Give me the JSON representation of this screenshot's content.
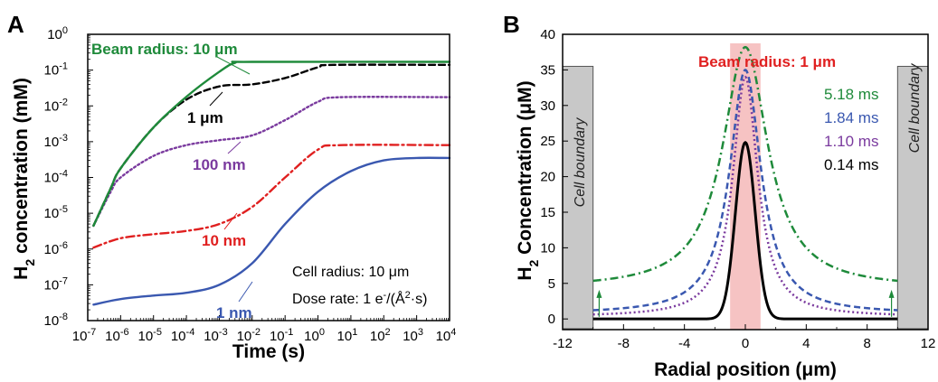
{
  "chart_data": [
    {
      "panel": "A",
      "type": "line",
      "xlabel": "Time (s)",
      "ylabel_main": "H",
      "ylabel_sub": "2",
      "ylabel_rest": " concentration (mM)",
      "xscale": "log",
      "yscale": "log",
      "xlim": [
        1e-07,
        10000.0
      ],
      "ylim": [
        1e-08,
        1
      ],
      "x_tick_labels": [
        {
          "base": "10",
          "exp": "-7"
        },
        {
          "base": "10",
          "exp": "-6"
        },
        {
          "base": "10",
          "exp": "-5"
        },
        {
          "base": "10",
          "exp": "-4"
        },
        {
          "base": "10",
          "exp": "-3"
        },
        {
          "base": "10",
          "exp": "-2"
        },
        {
          "base": "10",
          "exp": "-1"
        },
        {
          "base": "10",
          "exp": "0"
        },
        {
          "base": "10",
          "exp": "1"
        },
        {
          "base": "10",
          "exp": "2"
        },
        {
          "base": "10",
          "exp": "3"
        },
        {
          "base": "10",
          "exp": "4"
        }
      ],
      "y_tick_labels": [
        {
          "base": "10",
          "exp": "-8"
        },
        {
          "base": "10",
          "exp": "-7"
        },
        {
          "base": "10",
          "exp": "-6"
        },
        {
          "base": "10",
          "exp": "-5"
        },
        {
          "base": "10",
          "exp": "-4"
        },
        {
          "base": "10",
          "exp": "-3"
        },
        {
          "base": "10",
          "exp": "-2"
        },
        {
          "base": "10",
          "exp": "-1"
        },
        {
          "base": "10",
          "exp": "0"
        }
      ],
      "series": [
        {
          "label": "Beam radius: 10 μm",
          "color": "#1e8a3a",
          "dash": "solid",
          "points": [
            [
              1.5e-07,
              4.5e-06
            ],
            [
              5e-07,
              5e-05
            ],
            [
              1e-06,
              0.00018
            ],
            [
              1e-05,
              0.0025
            ],
            [
              0.0001,
              0.018
            ],
            [
              0.001,
              0.09
            ],
            [
              0.003,
              0.16
            ],
            [
              0.01,
              0.17
            ],
            [
              10000.0,
              0.17
            ]
          ]
        },
        {
          "label": "1 μm",
          "color": "#000000",
          "dash": "dashed",
          "points": [
            [
              1.5e-07,
              4.5e-06
            ],
            [
              5e-07,
              5e-05
            ],
            [
              1e-06,
              0.00018
            ],
            [
              1e-05,
              0.0025
            ],
            [
              0.0001,
              0.015
            ],
            [
              0.001,
              0.035
            ],
            [
              0.01,
              0.04
            ],
            [
              0.1,
              0.06
            ],
            [
              1,
              0.12
            ],
            [
              3,
              0.14
            ],
            [
              10000.0,
              0.14
            ]
          ]
        },
        {
          "label": "100 nm",
          "color": "#7a3a9e",
          "dash": "dotted",
          "points": [
            [
              1.5e-07,
              4.5e-06
            ],
            [
              5e-07,
              4e-05
            ],
            [
              1e-06,
              0.0001
            ],
            [
              1e-05,
              0.0004
            ],
            [
              0.0001,
              0.0008
            ],
            [
              0.001,
              0.0011
            ],
            [
              0.01,
              0.0015
            ],
            [
              0.1,
              0.004
            ],
            [
              1,
              0.013
            ],
            [
              5,
              0.0175
            ],
            [
              10000.0,
              0.0175
            ]
          ]
        },
        {
          "label": "10 nm",
          "color": "#e02020",
          "dash": "dashdot",
          "points": [
            [
              1.5e-07,
              1.1e-06
            ],
            [
              1e-06,
              2e-06
            ],
            [
              1e-05,
              2.6e-06
            ],
            [
              0.0001,
              3.2e-06
            ],
            [
              0.001,
              5e-06
            ],
            [
              0.01,
              1.5e-05
            ],
            [
              0.1,
              0.0001
            ],
            [
              1,
              0.0006
            ],
            [
              5,
              0.0008
            ],
            [
              10000.0,
              0.0008
            ]
          ]
        },
        {
          "label": "1 nm",
          "color": "#3a58b0",
          "dash": "solid",
          "points": [
            [
              1.5e-07,
              2.8e-08
            ],
            [
              1e-06,
              4e-08
            ],
            [
              1e-05,
              5e-08
            ],
            [
              0.0001,
              6e-08
            ],
            [
              0.001,
              1e-07
            ],
            [
              0.01,
              4e-07
            ],
            [
              0.1,
              5e-06
            ],
            [
              1,
              4e-05
            ],
            [
              10,
              0.00015
            ],
            [
              100,
              0.0003
            ],
            [
              1000.0,
              0.00035
            ],
            [
              10000.0,
              0.00035
            ]
          ]
        }
      ],
      "annotations": {
        "cell_radius": "Cell radius: 10 μm",
        "dose_rate_prefix": "Dose rate: 1 e",
        "dose_rate_sup": "-",
        "dose_rate_mid": "/(Å",
        "dose_rate_sup2": "2",
        "dose_rate_end": "·s)"
      }
    },
    {
      "panel": "B",
      "type": "line",
      "xlabel": "Radial position (μm)",
      "ylabel_main": "H",
      "ylabel_sub": "2",
      "ylabel_rest": " Concentration (μM)",
      "xlim": [
        -12,
        12
      ],
      "ylim": [
        -1.5,
        40
      ],
      "x_ticks": [
        "-12",
        "-8",
        "-4",
        "0",
        "4",
        "8",
        "12"
      ],
      "y_ticks": [
        "0",
        "5",
        "10",
        "15",
        "20",
        "25",
        "30",
        "35",
        "40"
      ],
      "beam_label": "Beam radius: 1 μm",
      "beam_region": [
        -1,
        1
      ],
      "cell_boundary_label": "Cell boundary",
      "cell_boundaries": [
        {
          "x0": -12,
          "x1": -10,
          "top": 35.5
        },
        {
          "x0": 10,
          "x1": 12,
          "top": 35.5
        }
      ],
      "series": [
        {
          "name": "5.18 ms",
          "color": "#1e8a3a",
          "dash": "dashdot",
          "peak": 38.2,
          "edge": 4.3,
          "width": 1.8
        },
        {
          "name": "1.84 ms",
          "color": "#3a58b0",
          "dash": "dashed",
          "peak": 35.0,
          "edge": 0.7,
          "width": 1.25
        },
        {
          "name": "1.10 ms",
          "color": "#7a3a9e",
          "dash": "dotted",
          "peak": 34.0,
          "edge": 0.3,
          "width": 1.0
        },
        {
          "name": "0.14 ms",
          "color": "#000000",
          "dash": "solid",
          "peak": 24.8,
          "edge": 0.0,
          "width": 0.48
        }
      ]
    }
  ]
}
